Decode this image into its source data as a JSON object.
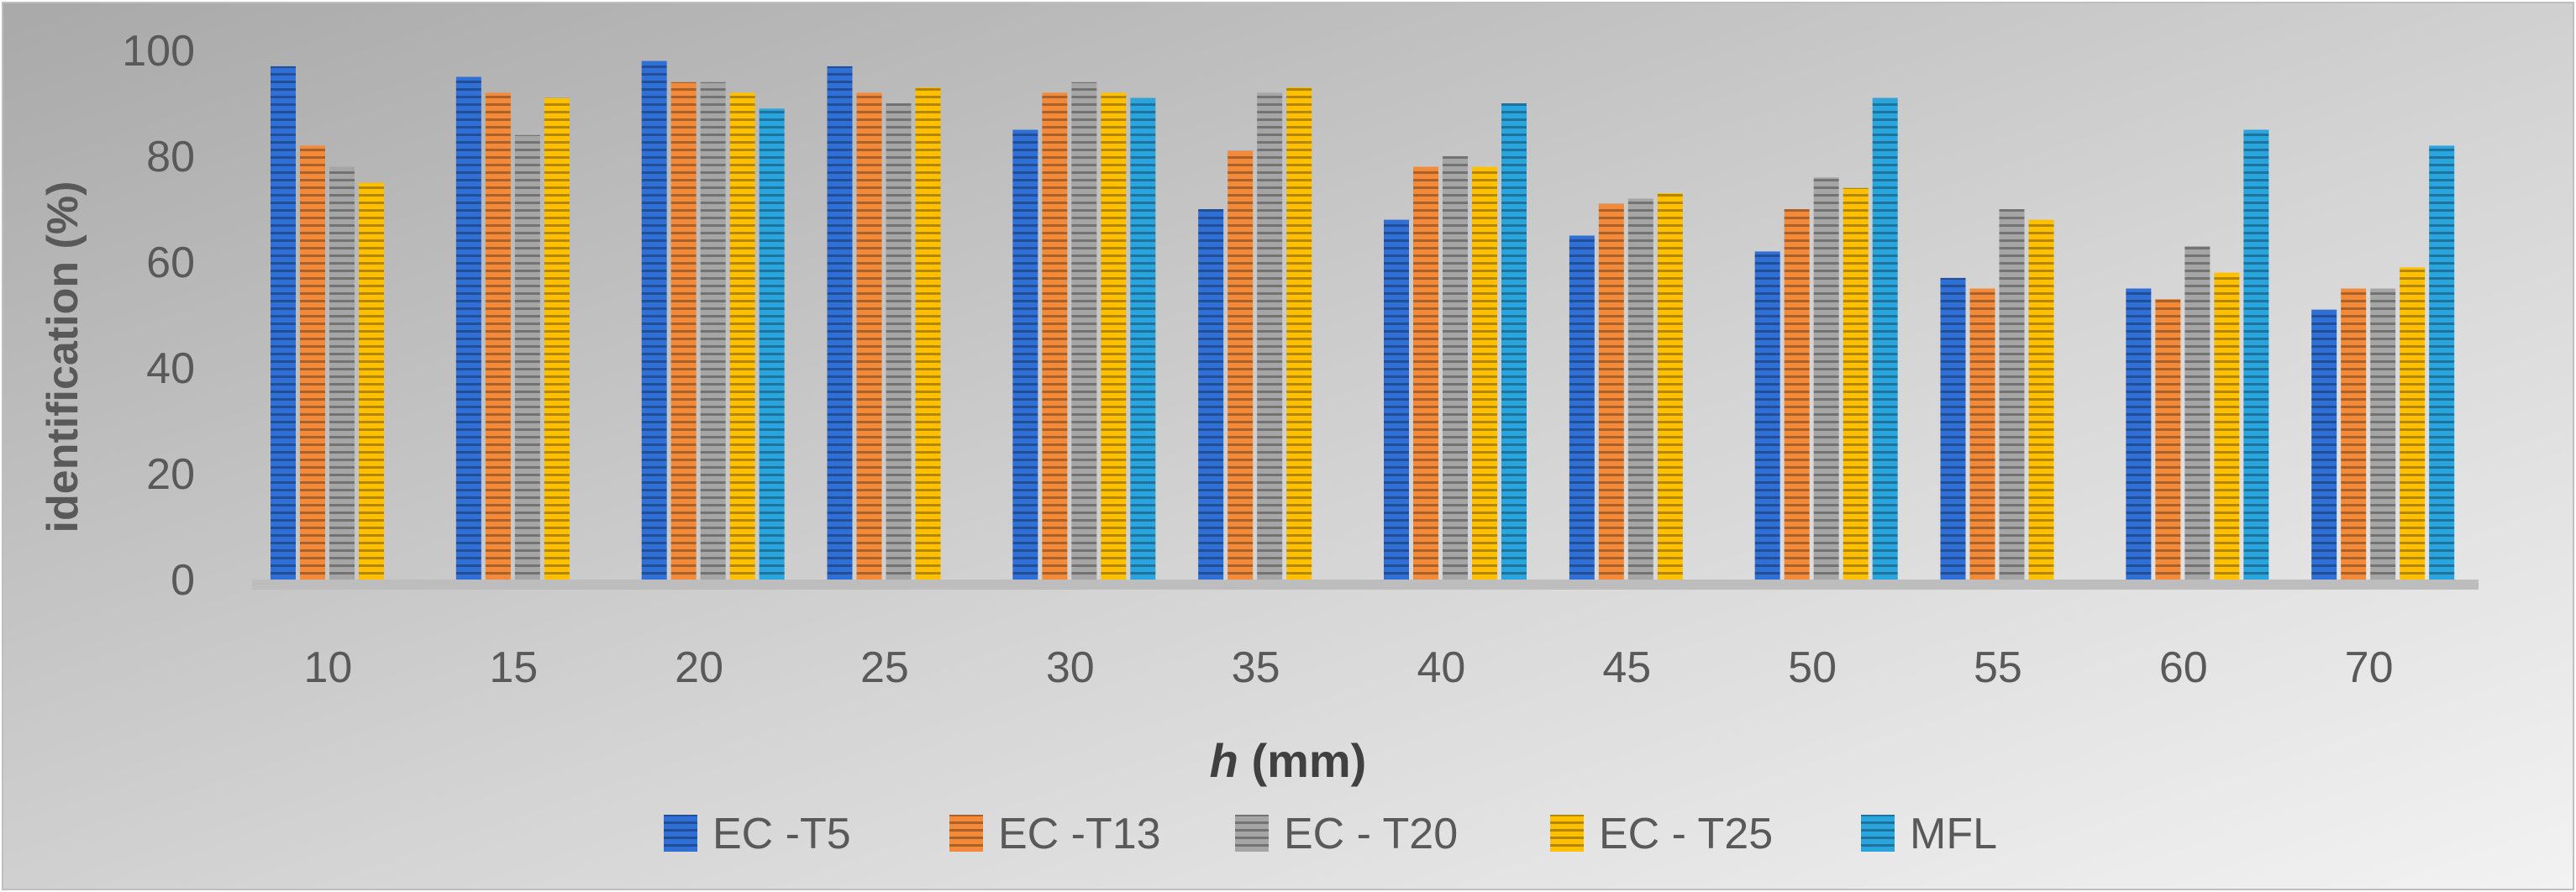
{
  "chart_data": {
    "type": "bar",
    "title": "",
    "xlabel_var": "h",
    "xlabel_unit": "(mm)",
    "ylabel": "identification (%)",
    "ylim": [
      0,
      100
    ],
    "yticks": [
      0,
      20,
      40,
      60,
      80,
      100
    ],
    "grid": false,
    "legend_position": "bottom",
    "categories": [
      "10",
      "15",
      "20",
      "25",
      "30",
      "35",
      "40",
      "45",
      "50",
      "55",
      "60",
      "70"
    ],
    "series": [
      {
        "name": "EC -T5",
        "color": "#2f6fd6",
        "values": [
          97,
          95,
          98,
          97,
          85,
          70,
          68,
          65,
          62,
          57,
          55,
          51
        ]
      },
      {
        "name": "EC -T13",
        "color": "#f28a3a",
        "values": [
          82,
          92,
          94,
          92,
          92,
          81,
          78,
          71,
          70,
          55,
          53,
          55
        ]
      },
      {
        "name": "EC - T20",
        "color": "#a5a5a5",
        "values": [
          78,
          84,
          94,
          90,
          94,
          92,
          80,
          72,
          76,
          70,
          63,
          55
        ]
      },
      {
        "name": "EC - T25",
        "color": "#ffc000",
        "values": [
          75,
          91,
          92,
          93,
          92,
          93,
          78,
          73,
          74,
          68,
          58,
          59
        ]
      },
      {
        "name": "MFL",
        "color": "#29a4dd",
        "values": [
          null,
          null,
          89,
          null,
          91,
          null,
          90,
          null,
          91,
          null,
          85,
          82
        ]
      }
    ]
  }
}
